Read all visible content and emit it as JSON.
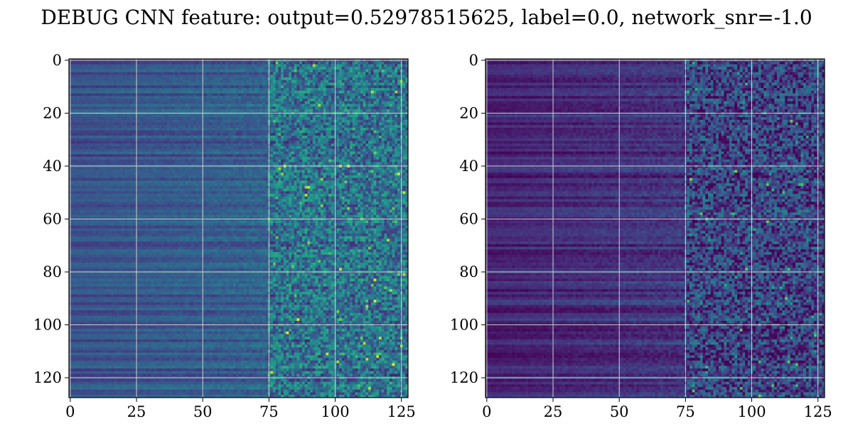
{
  "figure": {
    "suptitle": "DEBUG CNN feature: output=0.52978515625, label=0.0, network_snr=-1.0"
  },
  "chart_data": [
    {
      "type": "heatmap",
      "title": "",
      "xlabel": "",
      "ylabel": "",
      "colormap": "viridis",
      "grid": true,
      "x_range": [
        0,
        127
      ],
      "y_range": [
        0,
        127
      ],
      "y_inverted": true,
      "x_ticks": [
        0,
        25,
        50,
        75,
        100,
        125
      ],
      "y_ticks": [
        0,
        20,
        40,
        60,
        80,
        100,
        120
      ],
      "cells": [
        128,
        128
      ],
      "pattern": "row-wise horizontal stripes for columns 0-75, increasingly noisy speckle for columns 75-127; brighter values toward right",
      "value_range": [
        0,
        1
      ],
      "left_mean": 0.25,
      "right_mean": 0.38
    },
    {
      "type": "heatmap",
      "title": "",
      "xlabel": "",
      "ylabel": "",
      "colormap": "viridis",
      "grid": true,
      "x_range": [
        0,
        127
      ],
      "y_range": [
        0,
        127
      ],
      "y_inverted": true,
      "x_ticks": [
        0,
        25,
        50,
        75,
        100,
        125
      ],
      "y_ticks": [
        0,
        20,
        40,
        60,
        80,
        100,
        120
      ],
      "cells": [
        128,
        128
      ],
      "pattern": "darker row-wise stripes for columns 0-75, noisy speckle for columns 75-127",
      "value_range": [
        0,
        1
      ],
      "left_mean": 0.1,
      "right_mean": 0.2
    }
  ]
}
